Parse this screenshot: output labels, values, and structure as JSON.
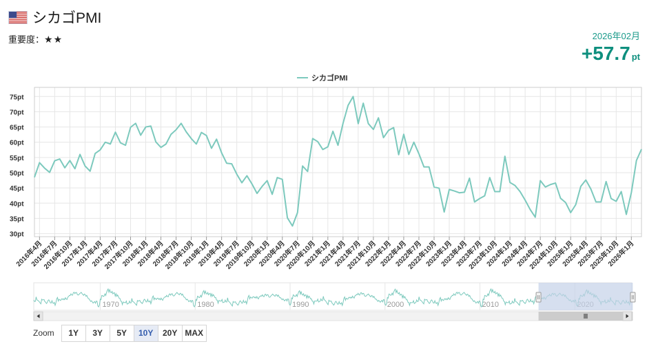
{
  "header": {
    "flag_icon": "us-flag-icon",
    "title": "シカゴPMI",
    "importance_label": "重要度：",
    "importance_stars": "★★",
    "latest_date": "2026年02月",
    "latest_value": "+57.7",
    "latest_unit": "pt"
  },
  "zoom": {
    "label": "Zoom",
    "buttons": [
      "1Y",
      "3Y",
      "5Y",
      "10Y",
      "20Y",
      "MAX"
    ],
    "active": "10Y"
  },
  "colors": {
    "series": "#7cc9bd",
    "grid": "#e6e6e6",
    "navigator_mask": "#c5d1e8",
    "active_zoom": "#e6ebf5"
  },
  "chart_data": {
    "type": "line",
    "legend": "シカゴPMI",
    "legend_position": "top-center",
    "grid": true,
    "ylim": [
      29,
      78
    ],
    "y_ticks": [
      "30pt",
      "35pt",
      "40pt",
      "45pt",
      "50pt",
      "55pt",
      "60pt",
      "65pt",
      "70pt",
      "75pt"
    ],
    "x_ticks": [
      "2016年4月",
      "2016年7月",
      "2016年10月",
      "2017年1月",
      "2017年4月",
      "2017年7月",
      "2017年10月",
      "2018年1月",
      "2018年4月",
      "2018年7月",
      "2018年10月",
      "2019年1月",
      "2019年4月",
      "2019年7月",
      "2019年10月",
      "2020年1月",
      "2020年4月",
      "2020年7月",
      "2020年10月",
      "2021年1月",
      "2021年4月",
      "2021年7月",
      "2021年10月",
      "2022年1月",
      "2022年4月",
      "2022年7月",
      "2022年10月",
      "2023年1月",
      "2023年4月",
      "2023年7月",
      "2023年10月",
      "2024年1月",
      "2024年4月",
      "2024年7月",
      "2024年10月",
      "2025年1月",
      "2025年4月",
      "2025年7月",
      "2025年10月",
      "2026年1月"
    ],
    "start": "2016年3月",
    "end": "2026年2月",
    "series": [
      {
        "name": "シカゴPMI",
        "values": [
          48.5,
          53.3,
          51.5,
          50.1,
          53.9,
          54.5,
          51.6,
          54.0,
          51.3,
          56.0,
          52.2,
          50.5,
          56.3,
          57.5,
          60.0,
          59.4,
          63.3,
          59.8,
          59.0,
          64.9,
          66.2,
          62.3,
          65.0,
          65.3,
          60.1,
          58.3,
          59.4,
          62.6,
          64.1,
          66.2,
          63.4,
          61.2,
          59.4,
          63.2,
          62.2,
          58.0,
          61.0,
          56.5,
          53.1,
          52.9,
          49.5,
          46.7,
          49.0,
          46.3,
          43.2,
          45.5,
          47.4,
          42.9,
          48.4,
          47.8,
          35.2,
          32.5,
          36.9,
          52.2,
          50.4,
          61.2,
          60.2,
          57.6,
          58.5,
          63.6,
          59.0,
          66.2,
          72.1,
          75.0,
          66.1,
          72.8,
          66.1,
          64.2,
          68.0,
          61.5,
          63.9,
          64.8,
          55.9,
          62.6,
          56.0,
          60.0,
          56.2,
          51.9,
          51.9,
          45.3,
          44.9,
          37.1,
          44.5,
          44.0,
          43.4,
          43.6,
          48.2,
          40.4,
          41.5,
          42.4,
          48.4,
          43.8,
          43.8,
          55.4,
          46.8,
          45.8,
          43.8,
          41.0,
          37.9,
          35.4,
          47.4,
          45.3,
          46.1,
          46.6,
          41.6,
          40.2,
          36.9,
          39.5,
          45.5,
          47.6,
          44.6,
          40.4,
          40.4,
          47.1,
          41.5,
          40.6,
          43.8,
          36.3,
          43.5,
          54.0,
          57.7
        ]
      }
    ]
  },
  "navigator": {
    "year_labels": [
      "1970",
      "1980",
      "1990",
      "2000",
      "2010",
      "2020"
    ],
    "range_start_year": 1963,
    "range_end_year": 2026,
    "selected_start_year": 2016.17,
    "selected_end_year": 2026.1,
    "scroll_left_icon": "arrow-left-icon",
    "scroll_right_icon": "arrow-right-icon",
    "grip_icon": "grip-icon"
  }
}
